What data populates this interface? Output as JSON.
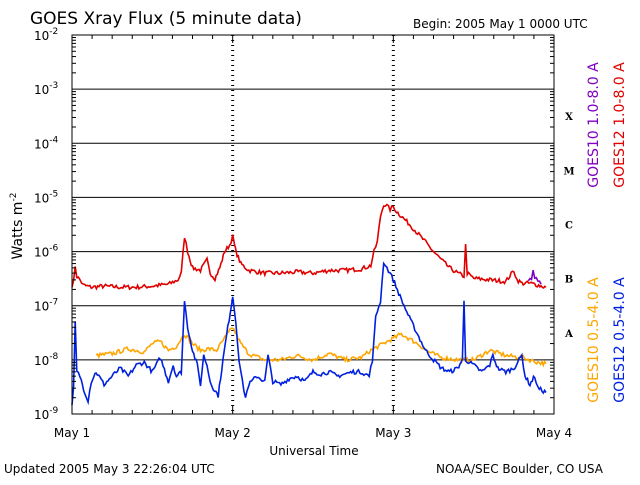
{
  "chart_data": {
    "type": "line",
    "title": "GOES Xray Flux (5 minute data)",
    "begin_label": "Begin:  2005 May 1 0000 UTC",
    "xlabel": "Universal Time",
    "ylabel": "Watts m",
    "ylabel_exp": "-2",
    "y_scale": "log",
    "ylim": [
      1e-09,
      0.01
    ],
    "xlim_days": [
      0,
      3
    ],
    "x_ticks": [
      "May 1",
      "May 2",
      "May 3",
      "May 4"
    ],
    "y_tick_base": "10",
    "y_tick_exponents": [
      "-2",
      "-3",
      "-4",
      "-5",
      "-6",
      "-7",
      "-8",
      "-9"
    ],
    "flare_classes": [
      "X",
      "M",
      "C",
      "B",
      "A"
    ],
    "grid": "horizontal at decades, dotted vertical at day boundaries",
    "updated_label": "Updated 2005 May  3 22:26:04 UTC",
    "source_label": "NOAA/SEC Boulder, CO USA",
    "series": [
      {
        "name": "GOES12 1.0-8.0 A",
        "color": "#e00000",
        "points": [
          [
            0.0,
            2.4e-07
          ],
          [
            0.01,
            2.7e-07
          ],
          [
            0.02,
            5.5e-07
          ],
          [
            0.03,
            3.5e-07
          ],
          [
            0.05,
            3e-07
          ],
          [
            0.07,
            2.4e-07
          ],
          [
            0.12,
            2.2e-07
          ],
          [
            0.2,
            2.3e-07
          ],
          [
            0.3,
            2.2e-07
          ],
          [
            0.4,
            2.2e-07
          ],
          [
            0.5,
            2.3e-07
          ],
          [
            0.6,
            2.5e-07
          ],
          [
            0.66,
            3e-07
          ],
          [
            0.68,
            4e-07
          ],
          [
            0.7,
            1.9e-06
          ],
          [
            0.72,
            1e-06
          ],
          [
            0.75,
            5e-07
          ],
          [
            0.8,
            4.5e-07
          ],
          [
            0.84,
            7e-07
          ],
          [
            0.86,
            4e-07
          ],
          [
            0.89,
            3.2e-07
          ],
          [
            0.92,
            5e-07
          ],
          [
            0.95,
            1e-06
          ],
          [
            0.98,
            1.3e-06
          ],
          [
            1.0,
            1.9e-06
          ],
          [
            1.02,
            1e-06
          ],
          [
            1.05,
            6e-07
          ],
          [
            1.1,
            4.5e-07
          ],
          [
            1.2,
            4e-07
          ],
          [
            1.3,
            4e-07
          ],
          [
            1.4,
            4.2e-07
          ],
          [
            1.5,
            4e-07
          ],
          [
            1.6,
            4.5e-07
          ],
          [
            1.7,
            4.5e-07
          ],
          [
            1.8,
            4.8e-07
          ],
          [
            1.86,
            5.5e-07
          ],
          [
            1.88,
            1e-06
          ],
          [
            1.9,
            1.5e-06
          ],
          [
            1.92,
            4.5e-06
          ],
          [
            1.94,
            7.5e-06
          ],
          [
            1.96,
            7e-06
          ],
          [
            1.98,
            6e-06
          ],
          [
            2.0,
            6.8e-06
          ],
          [
            2.02,
            5.5e-06
          ],
          [
            2.05,
            4.5e-06
          ],
          [
            2.1,
            3.2e-06
          ],
          [
            2.15,
            2.2e-06
          ],
          [
            2.2,
            1.5e-06
          ],
          [
            2.25,
            1e-06
          ],
          [
            2.3,
            7e-07
          ],
          [
            2.35,
            5e-07
          ],
          [
            2.4,
            4e-07
          ],
          [
            2.44,
            3.5e-07
          ],
          [
            2.45,
            1.3e-06
          ],
          [
            2.46,
            4e-07
          ],
          [
            2.5,
            3.2e-07
          ],
          [
            2.6,
            3e-07
          ],
          [
            2.7,
            2.8e-07
          ],
          [
            2.75,
            4.5e-07
          ],
          [
            2.77,
            3e-07
          ],
          [
            2.8,
            2.6e-07
          ],
          [
            2.85,
            2.6e-07
          ],
          [
            2.88,
            2.5e-07
          ],
          [
            2.92,
            2.3e-07
          ],
          [
            2.95,
            2.2e-07
          ]
        ]
      },
      {
        "name": "GOES10 1.0-8.0 A",
        "color": "#8000c0",
        "points": [
          [
            2.84,
            2.8e-07
          ],
          [
            2.86,
            3.2e-07
          ],
          [
            2.87,
            4.2e-07
          ],
          [
            2.88,
            3.5e-07
          ],
          [
            2.9,
            2.9e-07
          ],
          [
            2.92,
            2.5e-07
          ]
        ]
      },
      {
        "name": "GOES10 0.5-4.0 A",
        "color": "#ffa500",
        "points": [
          [
            0.15,
            1.2e-08
          ],
          [
            0.25,
            1.3e-08
          ],
          [
            0.35,
            1.6e-08
          ],
          [
            0.45,
            1.4e-08
          ],
          [
            0.5,
            2e-08
          ],
          [
            0.55,
            2.2e-08
          ],
          [
            0.6,
            1.5e-08
          ],
          [
            0.65,
            1.8e-08
          ],
          [
            0.7,
            3e-08
          ],
          [
            0.75,
            2e-08
          ],
          [
            0.8,
            1.5e-08
          ],
          [
            0.85,
            1.6e-08
          ],
          [
            0.9,
            1.5e-08
          ],
          [
            0.95,
            2.5e-08
          ],
          [
            1.0,
            4e-08
          ],
          [
            1.05,
            2e-08
          ],
          [
            1.1,
            1.3e-08
          ],
          [
            1.2,
            1e-08
          ],
          [
            1.3,
            1e-08
          ],
          [
            1.4,
            1.2e-08
          ],
          [
            1.5,
            1e-08
          ],
          [
            1.6,
            1.3e-08
          ],
          [
            1.7,
            1e-08
          ],
          [
            1.8,
            1.1e-08
          ],
          [
            1.86,
            1.5e-08
          ],
          [
            2.05,
            3e-08
          ],
          [
            2.15,
            2e-08
          ],
          [
            2.22,
            1.4e-08
          ],
          [
            2.3,
            1.1e-08
          ],
          [
            2.4,
            1e-08
          ],
          [
            2.5,
            1e-08
          ],
          [
            2.6,
            1.5e-08
          ],
          [
            2.7,
            1.2e-08
          ],
          [
            2.8,
            1.1e-08
          ],
          [
            2.9,
            9e-09
          ],
          [
            2.95,
            8.5e-09
          ]
        ]
      },
      {
        "name": "GOES12 0.5-4.0 A",
        "color": "#0020e0",
        "points": [
          [
            0.0,
            1.4e-09
          ],
          [
            0.01,
            3e-09
          ],
          [
            0.02,
            5e-08
          ],
          [
            0.03,
            6e-09
          ],
          [
            0.05,
            5e-09
          ],
          [
            0.08,
            2.5e-09
          ],
          [
            0.1,
            1.8e-09
          ],
          [
            0.12,
            4e-09
          ],
          [
            0.15,
            6e-09
          ],
          [
            0.2,
            3.5e-09
          ],
          [
            0.25,
            5e-09
          ],
          [
            0.3,
            7e-09
          ],
          [
            0.35,
            5e-09
          ],
          [
            0.4,
            8e-09
          ],
          [
            0.45,
            9e-09
          ],
          [
            0.5,
            6e-09
          ],
          [
            0.55,
            1.1e-08
          ],
          [
            0.6,
            4e-09
          ],
          [
            0.63,
            8e-09
          ],
          [
            0.65,
            5e-09
          ],
          [
            0.68,
            6e-09
          ],
          [
            0.7,
            1.2e-07
          ],
          [
            0.72,
            4e-08
          ],
          [
            0.75,
            1.5e-08
          ],
          [
            0.78,
            8e-09
          ],
          [
            0.8,
            3.5e-09
          ],
          [
            0.82,
            1.2e-08
          ],
          [
            0.84,
            8e-09
          ],
          [
            0.86,
            4e-09
          ],
          [
            0.88,
            3e-09
          ],
          [
            0.91,
            2.2e-09
          ],
          [
            0.94,
            1e-08
          ],
          [
            0.97,
            4e-08
          ],
          [
            1.0,
            1.5e-07
          ],
          [
            1.02,
            5e-08
          ],
          [
            1.04,
            1e-08
          ],
          [
            1.06,
            4e-09
          ],
          [
            1.08,
            2e-09
          ],
          [
            1.1,
            3.5e-09
          ],
          [
            1.15,
            5e-09
          ],
          [
            1.2,
            4e-09
          ],
          [
            1.22,
            1.2e-08
          ],
          [
            1.25,
            4e-09
          ],
          [
            1.3,
            3.5e-09
          ],
          [
            1.35,
            4.5e-09
          ],
          [
            1.4,
            5e-09
          ],
          [
            1.45,
            4e-09
          ],
          [
            1.5,
            6e-09
          ],
          [
            1.55,
            5.5e-09
          ],
          [
            1.6,
            6e-09
          ],
          [
            1.65,
            5e-09
          ],
          [
            1.7,
            5.5e-09
          ],
          [
            1.75,
            6e-09
          ],
          [
            1.8,
            6e-09
          ],
          [
            1.85,
            5e-09
          ],
          [
            1.87,
            1e-08
          ],
          [
            1.89,
            6e-08
          ],
          [
            1.91,
            1e-07
          ],
          [
            1.92,
            1.2e-07
          ],
          [
            1.94,
            6.5e-07
          ],
          [
            1.96,
            5e-07
          ],
          [
            1.98,
            4e-07
          ],
          [
            2.0,
            3e-07
          ],
          [
            2.05,
            1.3e-07
          ],
          [
            2.1,
            6e-08
          ],
          [
            2.15,
            3e-08
          ],
          [
            2.2,
            1.5e-08
          ],
          [
            2.25,
            1e-08
          ],
          [
            2.3,
            7e-09
          ],
          [
            2.35,
            6e-09
          ],
          [
            2.4,
            7e-09
          ],
          [
            2.43,
            1e-08
          ],
          [
            2.44,
            1.2e-07
          ],
          [
            2.45,
            1e-08
          ],
          [
            2.5,
            8e-09
          ],
          [
            2.55,
            6e-09
          ],
          [
            2.6,
            8e-09
          ],
          [
            2.62,
            1.2e-08
          ],
          [
            2.65,
            7e-09
          ],
          [
            2.7,
            6e-09
          ],
          [
            2.75,
            7e-09
          ],
          [
            2.8,
            1.2e-08
          ],
          [
            2.82,
            5e-09
          ],
          [
            2.85,
            3.5e-09
          ],
          [
            2.88,
            5e-09
          ],
          [
            2.9,
            3e-09
          ],
          [
            2.95,
            2.5e-09
          ]
        ]
      }
    ]
  }
}
